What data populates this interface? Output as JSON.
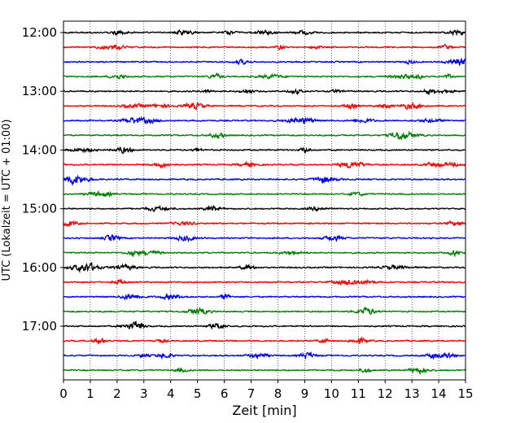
{
  "chart_data": {
    "type": "line",
    "subtype": "seismogram-helicorder",
    "xlabel": "Zeit  [min]",
    "ylabel": "UTC (Lokalzeit = UTC + 01:00)",
    "xlim": [
      0,
      15
    ],
    "x_ticks": [
      "0",
      "1",
      "2",
      "3",
      "4",
      "5",
      "6",
      "7",
      "8",
      "9",
      "10",
      "11",
      "12",
      "13",
      "14",
      "15"
    ],
    "y_ticks": [
      "12:00",
      "13:00",
      "14:00",
      "15:00",
      "16:00",
      "17:00"
    ],
    "trace_start_time": "12:00",
    "trace_interval_minutes": 15,
    "trace_count": 24,
    "trace_colors": [
      "#000000",
      "#ff0000",
      "#0000ff",
      "#008000"
    ],
    "grid": "vertical dotted at each minute"
  }
}
